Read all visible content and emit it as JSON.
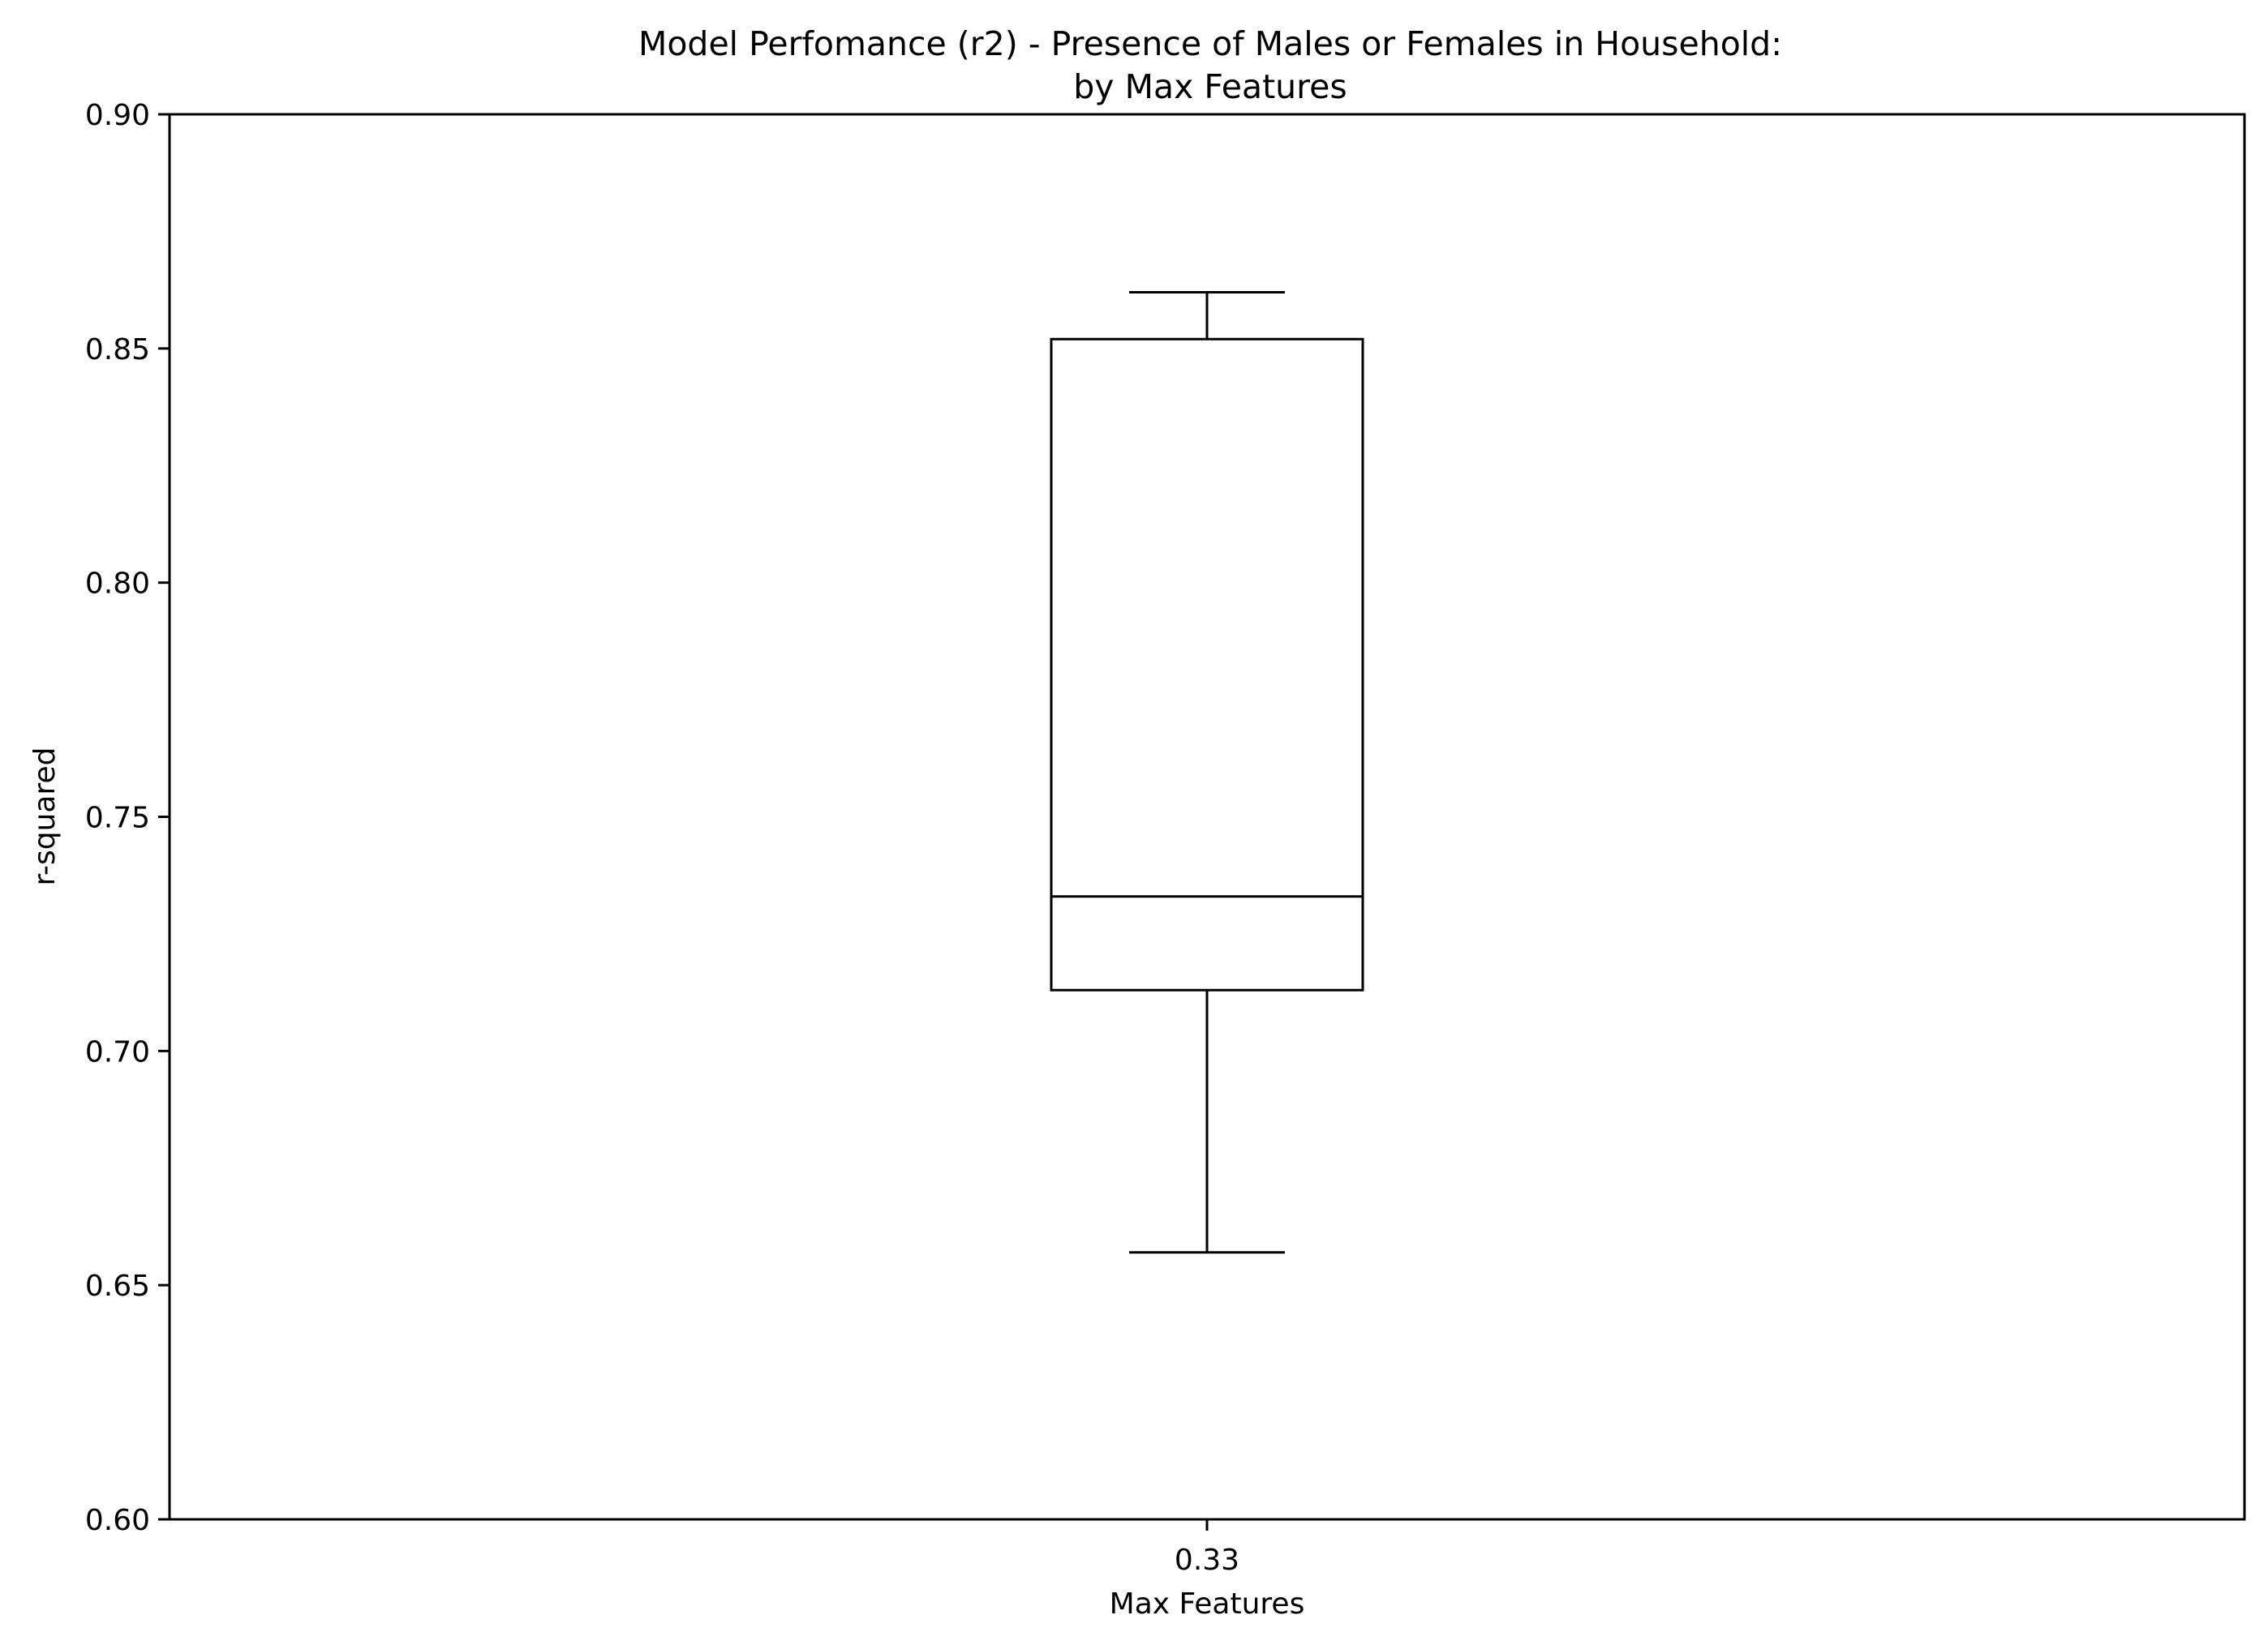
{
  "chart_data": {
    "type": "box",
    "title": "Model Perfomance (r2) - Presence of Males or Females in Household:",
    "subtitle": "by Max Features",
    "xlabel": "Max Features",
    "ylabel": "r-squared",
    "ylim": [
      0.6,
      0.9
    ],
    "yticks": [
      "0.60",
      "0.65",
      "0.70",
      "0.75",
      "0.80",
      "0.85",
      "0.90"
    ],
    "grid": false,
    "categories": [
      "0.33"
    ],
    "boxes": [
      {
        "category": "0.33",
        "whisker_low": 0.657,
        "q1": 0.713,
        "median": 0.733,
        "q3": 0.852,
        "whisker_high": 0.862
      }
    ]
  }
}
